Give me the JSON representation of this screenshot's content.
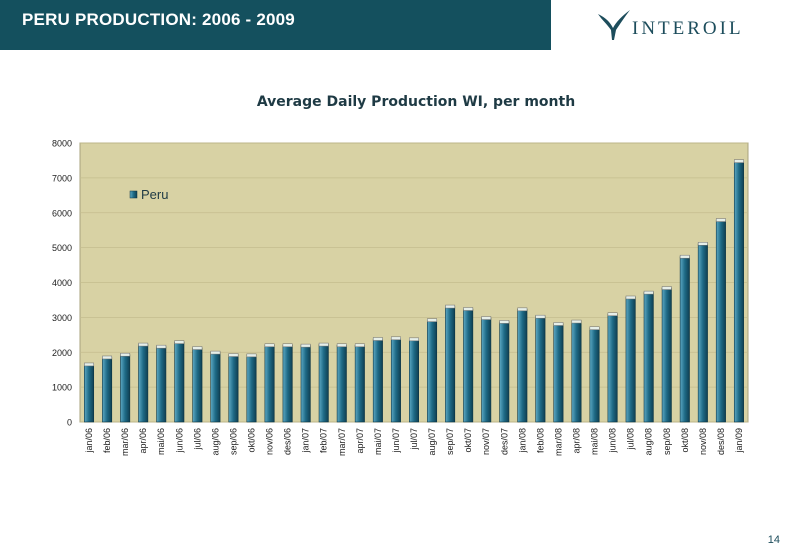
{
  "header": {
    "title": "PERU PRODUCTION: 2006 - 2009",
    "background": "#14505e"
  },
  "logo": {
    "text": "INTEROIL",
    "color": "#1d4d5c"
  },
  "page_number": "14",
  "chart_data": {
    "type": "bar",
    "title": "Average Daily Production WI, per month",
    "xlabel": "",
    "ylabel": "",
    "ylim": [
      0,
      8000
    ],
    "yticks": [
      0,
      1000,
      2000,
      3000,
      4000,
      5000,
      6000,
      7000,
      8000
    ],
    "grid": true,
    "legend_position": "top-left",
    "plot_background": "#d8d2a4",
    "bar_color": "#1e6a86",
    "categories": [
      "jan/06",
      "feb/06",
      "mar/06",
      "apr/06",
      "mai/06",
      "jun/06",
      "jul/06",
      "aug/06",
      "sep/06",
      "okt/06",
      "nov/06",
      "des/06",
      "jan/07",
      "feb/07",
      "mar/07",
      "apr/07",
      "mai/07",
      "jun/07",
      "jul/07",
      "aug/07",
      "sep/07",
      "okt/07",
      "nov/07",
      "des/07",
      "jan/08",
      "feb/08",
      "mar/08",
      "apr/08",
      "mai/08",
      "jun/08",
      "jul/08",
      "aug/08",
      "sep/08",
      "okt/08",
      "nov/08",
      "des/08",
      "jan/09"
    ],
    "series": [
      {
        "name": "Peru",
        "values": [
          1650,
          1850,
          1930,
          2220,
          2160,
          2290,
          2120,
          1990,
          1920,
          1910,
          2200,
          2200,
          2190,
          2220,
          2200,
          2200,
          2380,
          2400,
          2370,
          2920,
          3310,
          3240,
          2980,
          2870,
          3230,
          3020,
          2810,
          2880,
          2690,
          3090,
          3570,
          3710,
          3840,
          4740,
          5110,
          5790,
          7480
        ]
      }
    ]
  }
}
